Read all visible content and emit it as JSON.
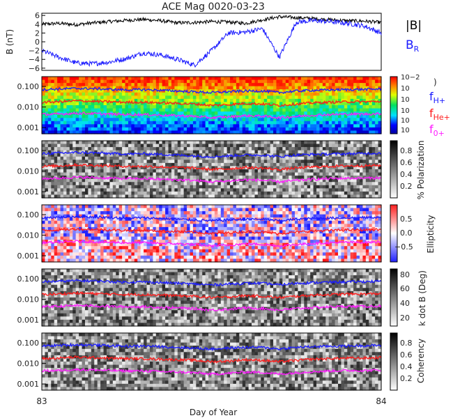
{
  "title": "ACE Mag 0020-03-23",
  "xlabel": "Day of Year",
  "x_ticks": [
    "83",
    "84"
  ],
  "colors": {
    "B_total": "#000000",
    "B_R": "#1a1aff",
    "f_H": "#1a1aff",
    "f_He": "#ff1a1a",
    "f_O": "#ff1aff"
  },
  "chart_data": [
    {
      "type": "line",
      "ylabel": "B (nT)",
      "ylim": [
        -6.5,
        6.5
      ],
      "y_ticks": [
        "6",
        "4",
        "2",
        "0",
        "−2",
        "−4",
        "−6"
      ],
      "x": [
        83.0,
        83.05,
        83.1,
        83.15,
        83.2,
        83.25,
        83.3,
        83.35,
        83.4,
        83.45,
        83.5,
        83.55,
        83.6,
        83.65,
        83.7,
        83.75,
        83.8,
        83.85,
        83.9,
        83.95,
        84.0
      ],
      "series": [
        {
          "name": "|B|",
          "values": [
            4.0,
            4.2,
            3.9,
            4.3,
            4.6,
            4.9,
            5.1,
            4.8,
            4.3,
            4.4,
            4.6,
            4.5,
            4.2,
            5.0,
            5.7,
            5.5,
            5.3,
            5.0,
            4.8,
            4.7,
            4.4
          ]
        },
        {
          "name": "B",
          "values": [
            -2.0,
            -3.5,
            -4.8,
            -5.0,
            -4.6,
            -3.8,
            -2.5,
            -3.0,
            -4.0,
            -5.3,
            -2.0,
            2.0,
            2.2,
            3.0,
            -3.5,
            4.5,
            4.8,
            4.6,
            4.2,
            3.6,
            2.0
          ]
        }
      ],
      "legend": [
        {
          "label": "|B|",
          "sub": ""
        },
        {
          "label": "B",
          "sub": "R"
        }
      ]
    },
    {
      "type": "heatmap",
      "yscale": "log",
      "ylim": [
        0.0005,
        0.3
      ],
      "y_ticks": [
        "0.100",
        "0.010",
        "0.001"
      ],
      "colorbar": {
        "ticks": [
          "10−2",
          "10",
          "10",
          "10",
          "10",
          "10"
        ]
      },
      "lines": [
        {
          "name": "f",
          "sub": "H+",
          "values": [
            0.07,
            0.075,
            0.08,
            0.078,
            0.072,
            0.068,
            0.07,
            0.065,
            0.06,
            0.055,
            0.05,
            0.055,
            0.06,
            0.06,
            0.05,
            0.06,
            0.065,
            0.068,
            0.07,
            0.072,
            0.075
          ]
        },
        {
          "name": "f",
          "sub": "He+",
          "values": [
            0.017,
            0.018,
            0.02,
            0.019,
            0.018,
            0.017,
            0.017,
            0.016,
            0.015,
            0.014,
            0.012,
            0.013,
            0.015,
            0.014,
            0.012,
            0.014,
            0.016,
            0.017,
            0.018,
            0.018,
            0.019
          ]
        },
        {
          "name": "f",
          "sub": "0+",
          "values": [
            0.0044,
            0.0045,
            0.005,
            0.0048,
            0.0045,
            0.0043,
            0.0043,
            0.004,
            0.0038,
            0.0035,
            0.003,
            0.0033,
            0.0038,
            0.0036,
            0.003,
            0.0035,
            0.004,
            0.0043,
            0.0045,
            0.0045,
            0.0047
          ]
        }
      ]
    },
    {
      "type": "heatmap",
      "yscale": "log",
      "y_ticks": [
        "0.100",
        "0.010",
        "0.001"
      ],
      "colorbar": {
        "label": "% Polarization",
        "ticks": [
          "0.8",
          "0.6",
          "0.4",
          "0.2"
        ]
      }
    },
    {
      "type": "heatmap",
      "yscale": "log",
      "y_ticks": [
        "0.100",
        "0.010",
        "0.001"
      ],
      "colorbar": {
        "label": "Ellipticity",
        "ticks": [
          "0.5",
          "0.0",
          "−0.5"
        ]
      }
    },
    {
      "type": "heatmap",
      "yscale": "log",
      "y_ticks": [
        "0.100",
        "0.010",
        "0.001"
      ],
      "colorbar": {
        "label": "k dot B (Deg)",
        "ticks": [
          "80",
          "60",
          "40",
          "20"
        ]
      }
    },
    {
      "type": "heatmap",
      "yscale": "log",
      "y_ticks": [
        "0.100",
        "0.010",
        "0.001"
      ],
      "colorbar": {
        "label": "Coherency",
        "ticks": [
          "0.8",
          "0.6",
          "0.4",
          "0.2"
        ]
      }
    }
  ]
}
